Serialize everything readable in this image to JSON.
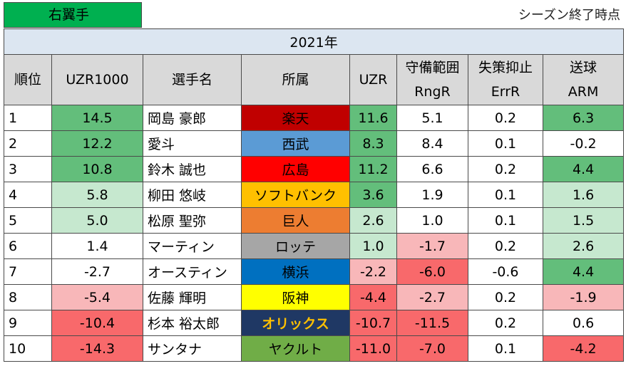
{
  "position_label": "右翼手",
  "timing_note": "シーズン終了時点",
  "year": "2021年",
  "headers": {
    "rank": "順位",
    "uzr1000": "UZR1000",
    "player": "選手名",
    "team": "所属",
    "uzr": "UZR",
    "rng_jp": "守備範囲",
    "rng_en": "RngR",
    "err_jp": "失策抑止",
    "err_en": "ErrR",
    "arm_jp": "送球",
    "arm_en": "ARM"
  },
  "rows": [
    {
      "rank": "1",
      "uzr1000": "14.5",
      "player": "岡島 豪郎",
      "team": "楽天",
      "uzr": "11.6",
      "rngr": "5.1",
      "errr": "0.2",
      "arm": "6.3"
    },
    {
      "rank": "2",
      "uzr1000": "12.2",
      "player": "愛斗",
      "team": "西武",
      "uzr": "8.3",
      "rngr": "8.4",
      "errr": "0.1",
      "arm": "-0.2"
    },
    {
      "rank": "3",
      "uzr1000": "10.8",
      "player": "鈴木 誠也",
      "team": "広島",
      "uzr": "11.2",
      "rngr": "6.6",
      "errr": "0.2",
      "arm": "4.4"
    },
    {
      "rank": "4",
      "uzr1000": "5.8",
      "player": "柳田 悠岐",
      "team": "ソフトバンク",
      "uzr": "3.6",
      "rngr": "1.9",
      "errr": "0.1",
      "arm": "1.6"
    },
    {
      "rank": "5",
      "uzr1000": "5.0",
      "player": "松原 聖弥",
      "team": "巨人",
      "uzr": "2.6",
      "rngr": "1.0",
      "errr": "0.1",
      "arm": "1.5"
    },
    {
      "rank": "6",
      "uzr1000": "1.4",
      "player": "マーティン",
      "team": "ロッテ",
      "uzr": "1.0",
      "rngr": "-1.7",
      "errr": "0.2",
      "arm": "2.6"
    },
    {
      "rank": "7",
      "uzr1000": "-2.7",
      "player": "オースティン",
      "team": "横浜",
      "uzr": "-2.2",
      "rngr": "-6.0",
      "errr": "-0.6",
      "arm": "4.4"
    },
    {
      "rank": "8",
      "uzr1000": "-5.4",
      "player": "佐藤 輝明",
      "team": "阪神",
      "uzr": "-4.4",
      "rngr": "-2.7",
      "errr": "0.2",
      "arm": "-1.9"
    },
    {
      "rank": "9",
      "uzr1000": "-10.4",
      "player": "杉本 裕太郎",
      "team": "オリックス",
      "uzr": "-10.7",
      "rngr": "-11.5",
      "errr": "0.2",
      "arm": "0.6"
    },
    {
      "rank": "10",
      "uzr1000": "-14.3",
      "player": "サンタナ",
      "team": "ヤクルト",
      "uzr": "-11.0",
      "rngr": "-7.0",
      "errr": "0.1",
      "arm": "-4.2"
    }
  ],
  "team_colors": {
    "楽天": {
      "bg": "#c00000",
      "fg": "#000000"
    },
    "西武": {
      "bg": "#5b9bd5",
      "fg": "#000000"
    },
    "広島": {
      "bg": "#ff0000",
      "fg": "#000000"
    },
    "ソフトバンク": {
      "bg": "#ffc000",
      "fg": "#000000"
    },
    "巨人": {
      "bg": "#ed7d31",
      "fg": "#000000"
    },
    "ロッテ": {
      "bg": "#a6a6a6",
      "fg": "#000000"
    },
    "横浜": {
      "bg": "#0070c0",
      "fg": "#000000"
    },
    "阪神": {
      "bg": "#ffff00",
      "fg": "#000000"
    },
    "オリックス": {
      "bg": "#1f3864",
      "fg": "#ffc000"
    },
    "ヤクルト": {
      "bg": "#70ad47",
      "fg": "#000000"
    }
  },
  "cell_shading": {
    "uzr1000": [
      "g-strong",
      "g-strong",
      "g-strong",
      "g-light",
      "g-light",
      "w",
      "w",
      "r-light",
      "r-strong",
      "r-strong"
    ],
    "uzr": [
      "g-strong",
      "g-strong",
      "g-strong",
      "g-strong",
      "g-light",
      "g-light",
      "r-light",
      "r-strong",
      "r-strong",
      "r-strong"
    ],
    "rngr": [
      "w",
      "w",
      "w",
      "w",
      "w",
      "r-light",
      "r-strong",
      "r-light",
      "r-strong",
      "r-strong"
    ],
    "errr": [
      "w",
      "w",
      "w",
      "w",
      "w",
      "w",
      "w",
      "w",
      "w",
      "w"
    ],
    "arm": [
      "g-strong",
      "w",
      "g-strong",
      "g-light",
      "g-light",
      "g-light",
      "g-strong",
      "r-light",
      "w",
      "r-strong"
    ]
  }
}
